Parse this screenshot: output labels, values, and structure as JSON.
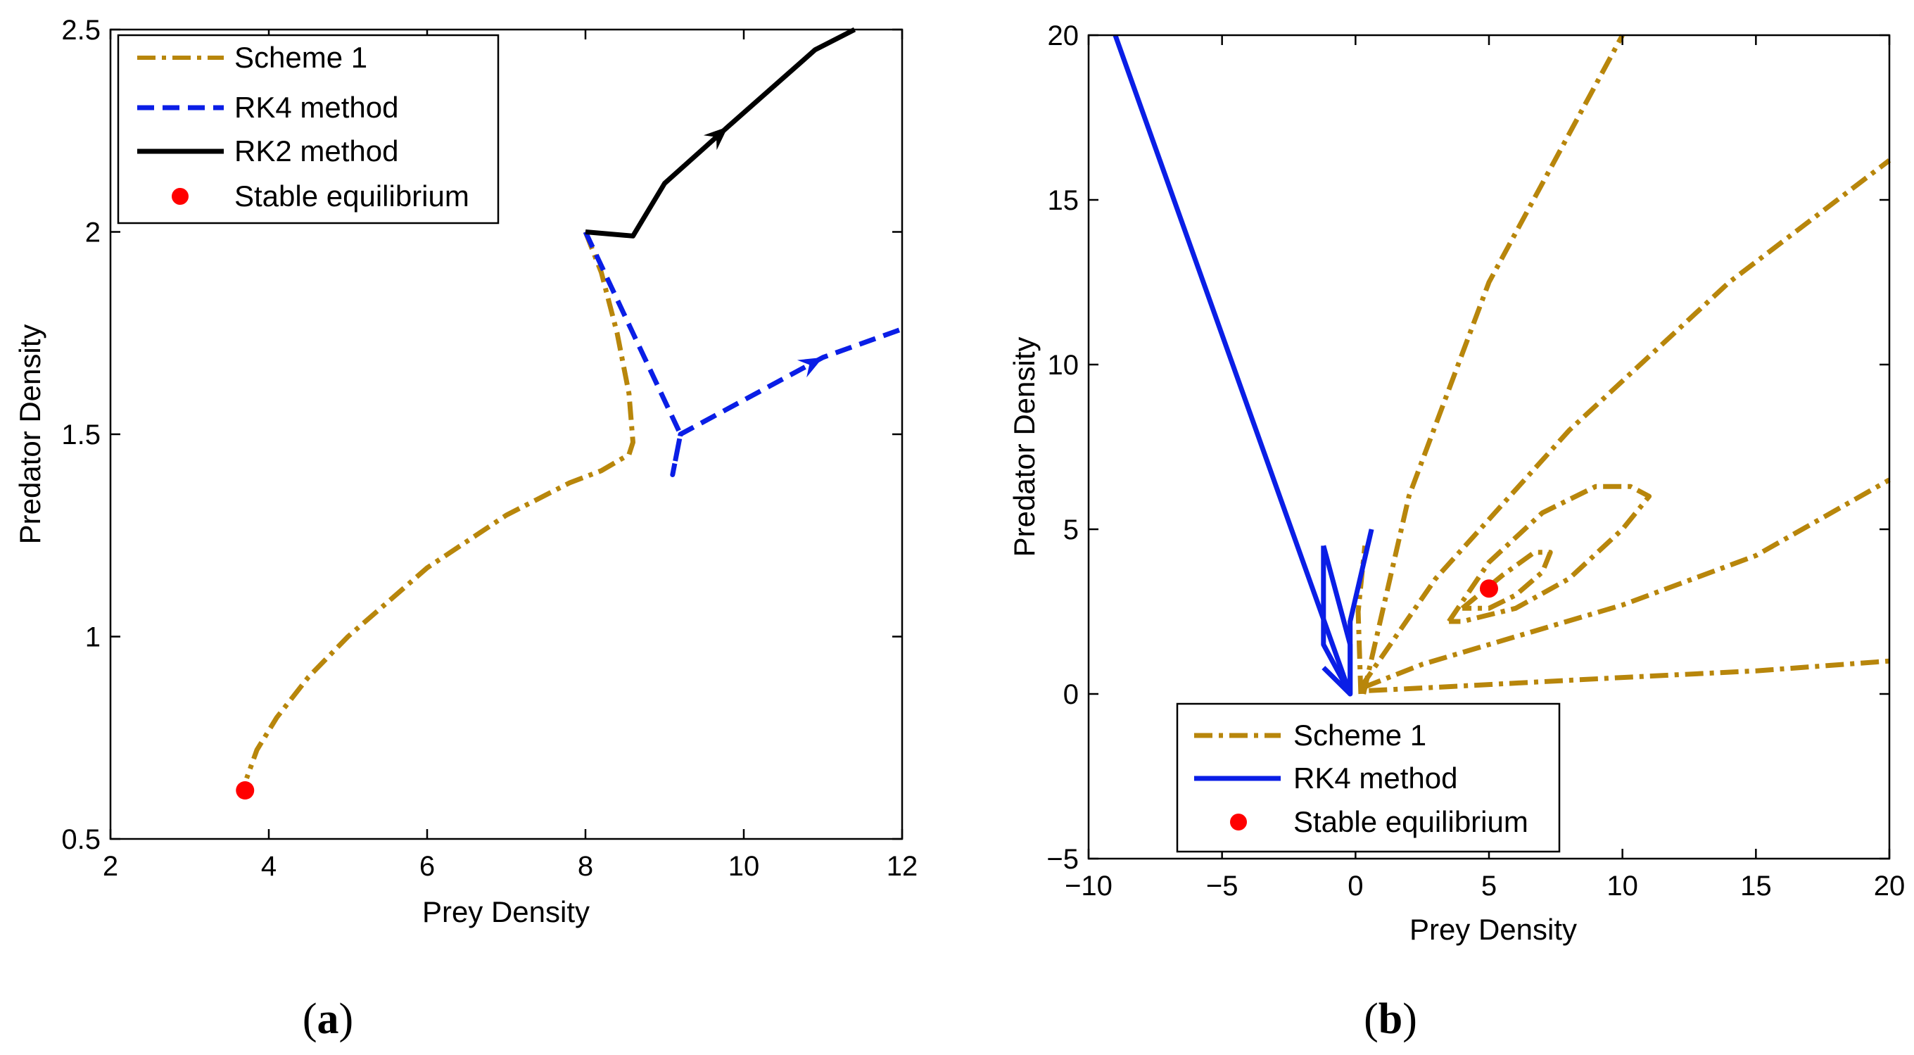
{
  "figure": {
    "panels": [
      {
        "id": "a",
        "label_open": "(",
        "label_letter": "a",
        "label_close": ")"
      },
      {
        "id": "b",
        "label_open": "(",
        "label_letter": "b",
        "label_close": ")"
      }
    ]
  },
  "colors": {
    "scheme1": "#B8860B",
    "rk4": "#0A1EE6",
    "rk2": "#000000",
    "equilibrium": "#FF0000"
  },
  "chart_data": [
    {
      "type": "line",
      "panel": "a",
      "title": "",
      "xlabel": "Prey Density",
      "ylabel": "Predator Density",
      "xlim": [
        2,
        12
      ],
      "ylim": [
        0.5,
        2.5
      ],
      "xticks": [
        2,
        4,
        6,
        8,
        10,
        12
      ],
      "xtick_labels": [
        "2",
        "4",
        "6",
        "8",
        "10",
        "12"
      ],
      "yticks": [
        0.5,
        1,
        1.5,
        2,
        2.5
      ],
      "ytick_labels": [
        "0.5",
        "1",
        "1.5",
        "2",
        "2.5"
      ],
      "legend": {
        "position": "top-left",
        "entries": [
          "Scheme 1",
          "RK4 method",
          "RK2 method",
          "Stable equilibrium"
        ]
      },
      "series": [
        {
          "name": "Scheme 1",
          "style": "dashdot",
          "color": "#B8860B",
          "points": [
            [
              8.0,
              2.0
            ],
            [
              8.2,
              1.9
            ],
            [
              8.4,
              1.75
            ],
            [
              8.55,
              1.6
            ],
            [
              8.6,
              1.48
            ],
            [
              8.55,
              1.45
            ],
            [
              8.2,
              1.41
            ],
            [
              7.8,
              1.38
            ],
            [
              7.0,
              1.3
            ],
            [
              6.0,
              1.17
            ],
            [
              5.0,
              1.0
            ],
            [
              4.5,
              0.9
            ],
            [
              4.1,
              0.8
            ],
            [
              3.85,
              0.72
            ],
            [
              3.72,
              0.65
            ]
          ]
        },
        {
          "name": "RK4 method",
          "style": "dashed",
          "color": "#0A1EE6",
          "arrow_at": [
            11.0,
            1.69
          ],
          "points": [
            [
              8.0,
              2.0
            ],
            [
              8.6,
              1.75
            ],
            [
              9.2,
              1.5
            ],
            [
              9.1,
              1.4
            ],
            [
              9.2,
              1.5
            ],
            [
              11.0,
              1.69
            ],
            [
              12.0,
              1.76
            ]
          ]
        },
        {
          "name": "RK2 method",
          "style": "solid",
          "color": "#000000",
          "arrow_at": [
            9.8,
            2.26
          ],
          "points": [
            [
              8.0,
              2.0
            ],
            [
              8.6,
              1.99
            ],
            [
              9.0,
              2.12
            ],
            [
              9.8,
              2.26
            ],
            [
              10.9,
              2.45
            ],
            [
              11.4,
              2.5
            ]
          ]
        },
        {
          "name": "Stable equilibrium",
          "style": "marker",
          "color": "#FF0000",
          "points": [
            [
              3.7,
              0.62
            ]
          ]
        }
      ]
    },
    {
      "type": "line",
      "panel": "b",
      "title": "",
      "xlabel": "Prey Density",
      "ylabel": "Predator Density",
      "xlim": [
        -10,
        20
      ],
      "ylim": [
        -5,
        20
      ],
      "xticks": [
        -10,
        -5,
        0,
        5,
        10,
        15,
        20
      ],
      "xtick_labels": [
        "−10",
        "−5",
        "0",
        "5",
        "10",
        "15",
        "20"
      ],
      "yticks": [
        -5,
        0,
        5,
        10,
        15,
        20
      ],
      "ytick_labels": [
        "−5",
        "0",
        "5",
        "10",
        "15",
        "20"
      ],
      "legend": {
        "position": "bottom-center",
        "entries": [
          "Scheme 1",
          "RK4 method",
          "Stable equilibrium"
        ]
      },
      "series": [
        {
          "name": "Scheme 1",
          "style": "dashdot",
          "color": "#B8860B",
          "points": [
            [
              0.3,
              0.0
            ],
            [
              2.0,
              6.0
            ],
            [
              5.0,
              12.5
            ],
            [
              10.0,
              20.0
            ]
          ]
        },
        {
          "name": "Scheme 1",
          "style": "dashdot",
          "color": "#B8860B",
          "points": [
            [
              0.2,
              0.2
            ],
            [
              3.0,
              3.5
            ],
            [
              8.0,
              8.0
            ],
            [
              14.0,
              12.5
            ],
            [
              20.0,
              16.2
            ]
          ]
        },
        {
          "name": "Scheme 1",
          "style": "dashdot",
          "color": "#B8860B",
          "points": [
            [
              0.3,
              0.2
            ],
            [
              2.5,
              0.9
            ],
            [
              5.0,
              1.5
            ],
            [
              10.0,
              2.7
            ],
            [
              15.0,
              4.2
            ],
            [
              20.0,
              6.5
            ]
          ]
        },
        {
          "name": "Scheme 1",
          "style": "dashdot",
          "color": "#B8860B",
          "points": [
            [
              0.5,
              0.1
            ],
            [
              3.0,
              0.2
            ],
            [
              10.0,
              0.5
            ],
            [
              15.0,
              0.7
            ],
            [
              20.0,
              1.0
            ]
          ]
        },
        {
          "name": "Scheme 1",
          "style": "dashdot",
          "color": "#B8860B",
          "points": [
            [
              0.2,
              0.0
            ],
            [
              0.1,
              2.5
            ],
            [
              0.35,
              4.5
            ]
          ]
        },
        {
          "name": "Scheme 1",
          "style": "dashdot",
          "color": "#B8860B",
          "points": [
            [
              3.5,
              2.2
            ],
            [
              5.0,
              4.0
            ],
            [
              7.0,
              5.5
            ],
            [
              9.0,
              6.3
            ],
            [
              10.3,
              6.3
            ],
            [
              11.0,
              6.0
            ],
            [
              10.0,
              5.0
            ],
            [
              8.0,
              3.5
            ],
            [
              6.0,
              2.6
            ],
            [
              4.0,
              2.2
            ],
            [
              3.5,
              2.2
            ]
          ]
        },
        {
          "name": "Scheme 1",
          "style": "dashdot",
          "color": "#B8860B",
          "points": [
            [
              4.0,
              2.6
            ],
            [
              5.5,
              3.6
            ],
            [
              6.7,
              4.3
            ],
            [
              7.3,
              4.3
            ],
            [
              7.0,
              3.7
            ],
            [
              6.0,
              3.0
            ],
            [
              5.0,
              2.6
            ],
            [
              4.0,
              2.6
            ]
          ]
        },
        {
          "name": "RK4 method",
          "style": "solid",
          "color": "#0A1EE6",
          "points": [
            [
              -9.0,
              20.0
            ],
            [
              -0.2,
              0.0
            ]
          ]
        },
        {
          "name": "RK4 method",
          "style": "solid",
          "color": "#0A1EE6",
          "points": [
            [
              -1.2,
              4.5
            ],
            [
              -0.2,
              1.5
            ],
            [
              -0.2,
              0.0
            ],
            [
              -1.2,
              1.5
            ],
            [
              -1.2,
              4.5
            ]
          ]
        },
        {
          "name": "RK4 method",
          "style": "solid",
          "color": "#0A1EE6",
          "points": [
            [
              -1.2,
              0.8
            ],
            [
              -0.2,
              0.0
            ],
            [
              -0.2,
              2.2
            ],
            [
              0.6,
              5.0
            ]
          ]
        },
        {
          "name": "Stable equilibrium",
          "style": "marker",
          "color": "#FF0000",
          "points": [
            [
              5.0,
              3.2
            ]
          ]
        }
      ]
    }
  ]
}
